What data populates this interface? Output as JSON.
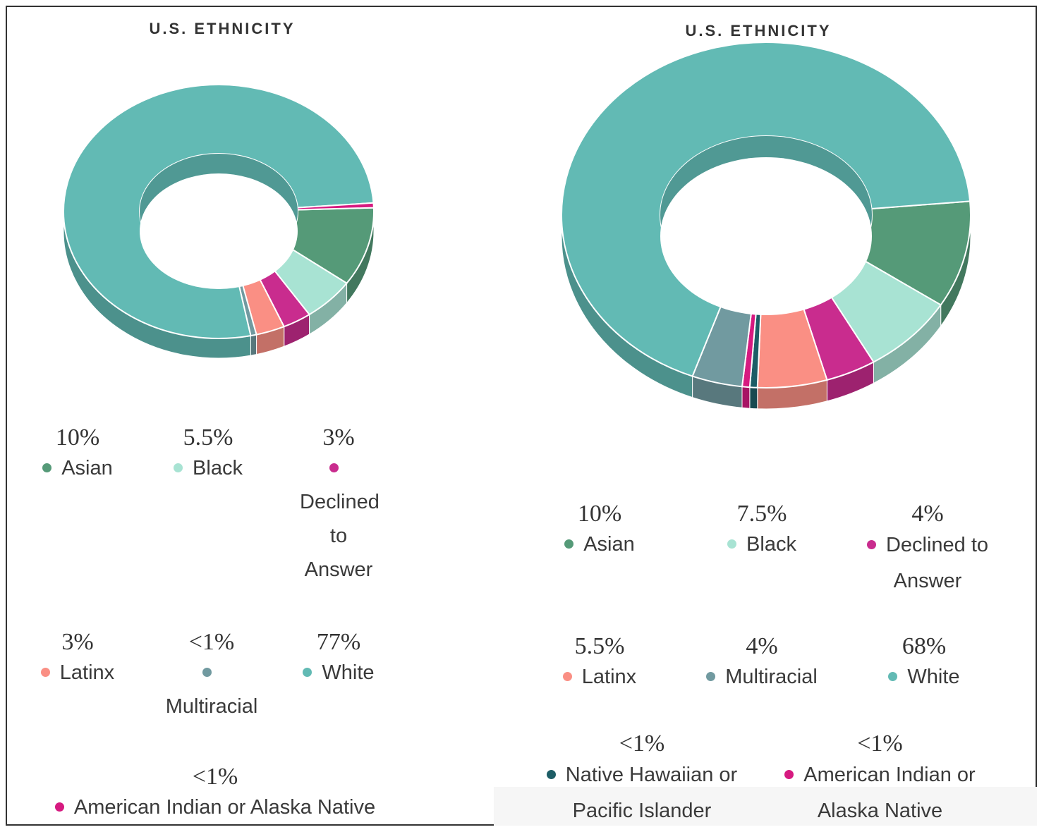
{
  "chart_data": [
    {
      "type": "pie",
      "title": "U.S. ETHNICITY",
      "values_unit": "%",
      "slices": [
        {
          "label": "Asian",
          "pct_text": "10%",
          "value": 10,
          "color": "#559a78"
        },
        {
          "label": "Black",
          "pct_text": "5.5%",
          "value": 5.5,
          "color": "#a8e3d3"
        },
        {
          "label": "Declined to Answer",
          "pct_text": "3%",
          "value": 3,
          "color": "#c92c8e"
        },
        {
          "label": "Latinx",
          "pct_text": "3%",
          "value": 3,
          "color": "#fa8f84"
        },
        {
          "label": "Multiracial",
          "pct_text": "<1%",
          "value": 0.6,
          "color": "#719aa0"
        },
        {
          "label": "White",
          "pct_text": "77%",
          "value": 77,
          "color": "#62bab4"
        },
        {
          "label": "American Indian or Alaska Native",
          "pct_text": "<1%",
          "value": 0.6,
          "color": "#d61a80"
        }
      ]
    },
    {
      "type": "pie",
      "title": "U.S. ETHNICITY",
      "values_unit": "%",
      "slices": [
        {
          "label": "Asian",
          "pct_text": "10%",
          "value": 10,
          "color": "#559a78"
        },
        {
          "label": "Black",
          "pct_text": "7.5%",
          "value": 7.5,
          "color": "#a8e3d3"
        },
        {
          "label": "Declined to Answer",
          "pct_text": "4%",
          "value": 4,
          "color": "#c92c8e"
        },
        {
          "label": "Latinx",
          "pct_text": "5.5%",
          "value": 5.5,
          "color": "#fa8f84"
        },
        {
          "label": "Multiracial",
          "pct_text": "4%",
          "value": 4,
          "color": "#719aa0"
        },
        {
          "label": "White",
          "pct_text": "68%",
          "value": 68,
          "color": "#62bab4"
        },
        {
          "label": "Native Hawaiian or Pacific Islander",
          "pct_text": "<1%",
          "value": 0.6,
          "color": "#1d5d66"
        },
        {
          "label": "American Indian or Alaska Native",
          "pct_text": "<1%",
          "value": 0.6,
          "color": "#d61a80"
        }
      ]
    }
  ]
}
